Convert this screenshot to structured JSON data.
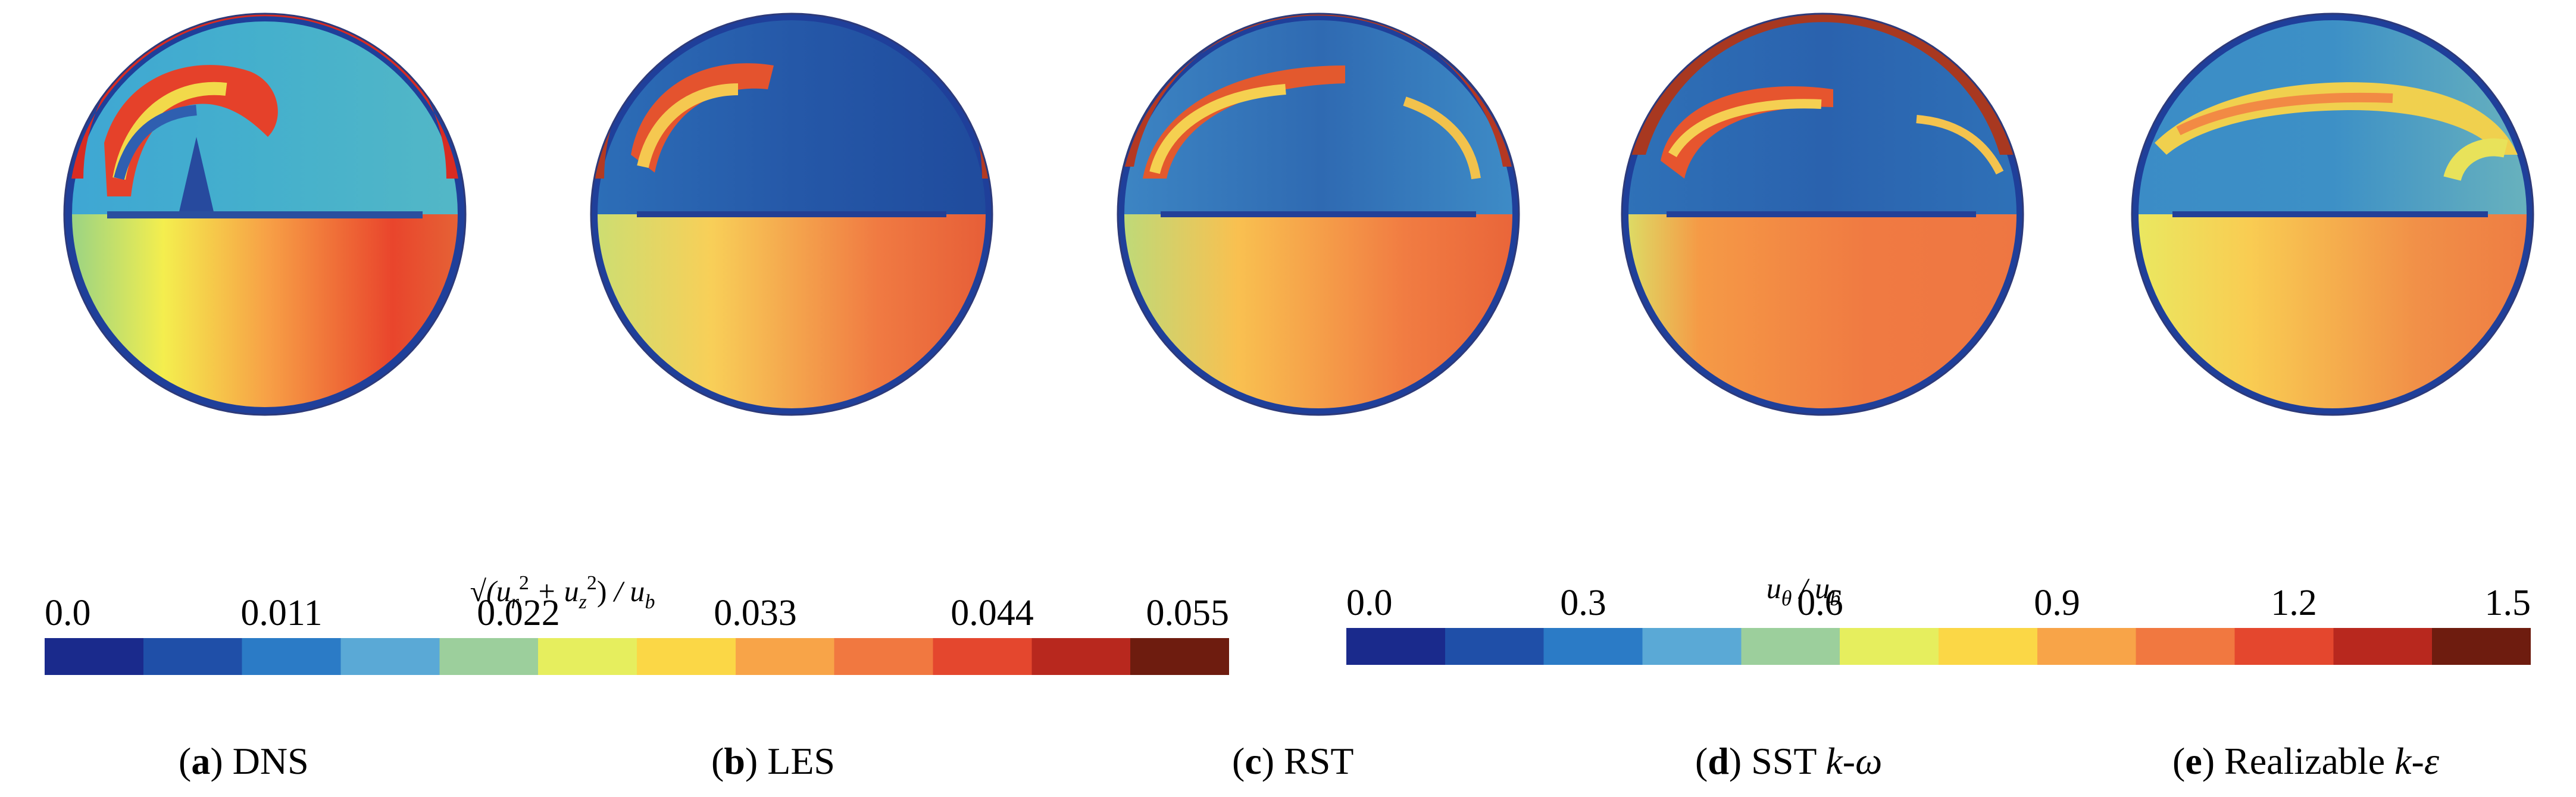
{
  "panels": [
    {
      "letter": "a",
      "name": "DNS",
      "italic": ""
    },
    {
      "letter": "b",
      "name": "LES",
      "italic": ""
    },
    {
      "letter": "c",
      "name": "RST",
      "italic": ""
    },
    {
      "letter": "d",
      "name": "SST ",
      "italic": "k-ω"
    },
    {
      "letter": "e",
      "name": "Realizable ",
      "italic": "k-ε"
    }
  ],
  "colorbars": {
    "secondary": {
      "title_parts": [
        "√(u",
        "r",
        "2",
        " + u",
        "z",
        "2",
        ")",
        " / u",
        "b"
      ],
      "ticks": [
        "0.0",
        "0.011",
        "0.022",
        "0.033",
        "0.044",
        "0.055"
      ],
      "range": [
        0.0,
        0.055
      ]
    },
    "azimuthal": {
      "title_parts": [
        "u",
        "θ",
        " / u",
        "b"
      ],
      "ticks": [
        "0.0",
        "0.3",
        "0.6",
        "0.9",
        "1.2",
        "1.5"
      ],
      "range": [
        0.0,
        1.5
      ]
    }
  },
  "colors": {
    "map": [
      "#1a2a8c",
      "#1f4fa8",
      "#2b7bc6",
      "#5aa9d6",
      "#9ccf9c",
      "#e6ee5e",
      "#fbd746",
      "#f8a448",
      "#f17840",
      "#e4472e",
      "#b8281e",
      "#6e1c0f"
    ]
  }
}
